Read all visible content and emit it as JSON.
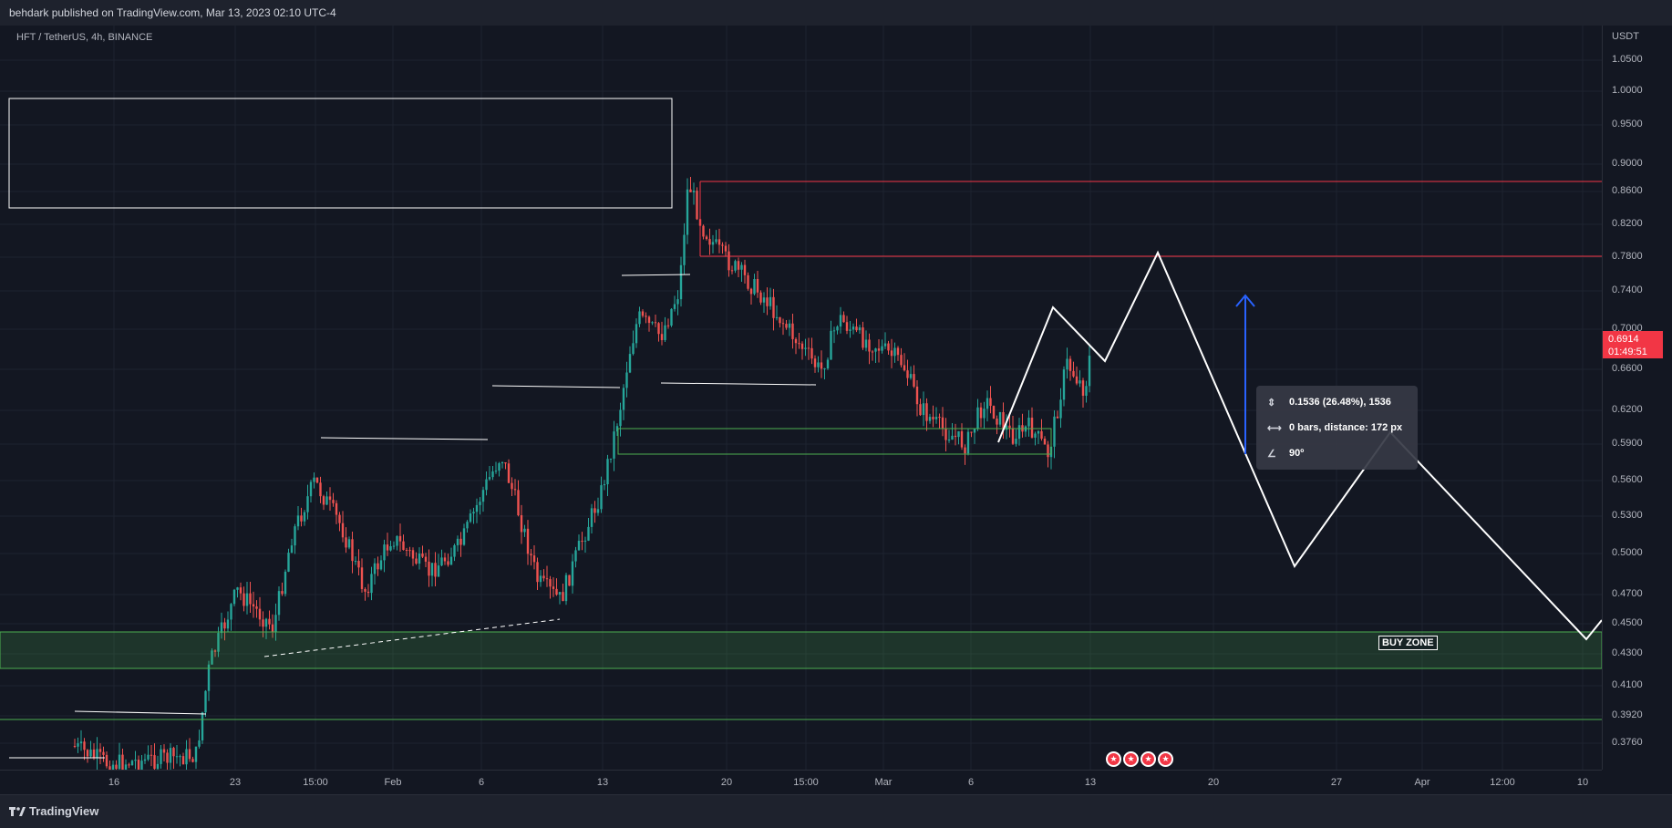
{
  "header": {
    "published": "behdark published on TradingView.com, Mar 13, 2023 02:10 UTC-4"
  },
  "symbol": {
    "title": "HFT / TetherUS, 4h, BINANCE"
  },
  "price_axis": {
    "unit": "USDT",
    "ticks": [
      "1.0500",
      "1.0000",
      "0.9500",
      "0.9000",
      "0.8600",
      "0.8200",
      "0.7800",
      "0.7400",
      "0.7000",
      "0.6600",
      "0.6200",
      "0.5900",
      "0.5600",
      "0.5300",
      "0.5000",
      "0.4700",
      "0.4500",
      "0.4300",
      "0.4100",
      "0.3920",
      "0.3760"
    ],
    "current_price": "0.6914",
    "countdown": "01:49:51"
  },
  "time_axis": {
    "labels": [
      "16",
      "23",
      "15:00",
      "Feb",
      "6",
      "13",
      "20",
      "15:00",
      "Mar",
      "6",
      "13",
      "20",
      "27",
      "Apr",
      "12:00",
      "10"
    ]
  },
  "measure": {
    "price_change": "0.1536 (26.48%), 1536",
    "bars": "0 bars, distance: 172 px",
    "angle": "90º"
  },
  "zones": {
    "buy_zone_label": "BUY ZONE"
  },
  "footer": {
    "brand": "TradingView"
  },
  "colors": {
    "up": "#26a69a",
    "down": "#ef5350",
    "resistance": "#f23645",
    "support": "#4caf50",
    "measure_arrow": "#2962ff"
  }
}
